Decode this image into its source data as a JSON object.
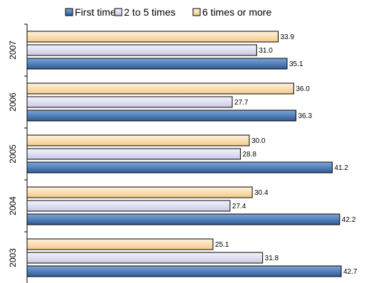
{
  "chart_data": {
    "type": "bar",
    "orientation": "horizontal",
    "categories": [
      "2007",
      "2006",
      "2005",
      "2004",
      "2003"
    ],
    "series": [
      {
        "name": "6 times or more",
        "values": [
          33.9,
          36.0,
          30.0,
          30.4,
          25.1
        ],
        "color": "#F9D9A6"
      },
      {
        "name": "2 to 5 times",
        "values": [
          31.0,
          27.7,
          28.8,
          27.4,
          31.8
        ],
        "color": "#DCDCF2"
      },
      {
        "name": "First time",
        "values": [
          35.1,
          36.3,
          41.2,
          42.2,
          42.7
        ],
        "color": "#3E6FB0"
      }
    ],
    "legend_order": [
      "First time",
      "2 to 5 times",
      "6 times or more"
    ],
    "legend_position": "top",
    "xlim": [
      0,
      43
    ],
    "grid": false,
    "title": "",
    "xlabel": "",
    "ylabel": ""
  }
}
